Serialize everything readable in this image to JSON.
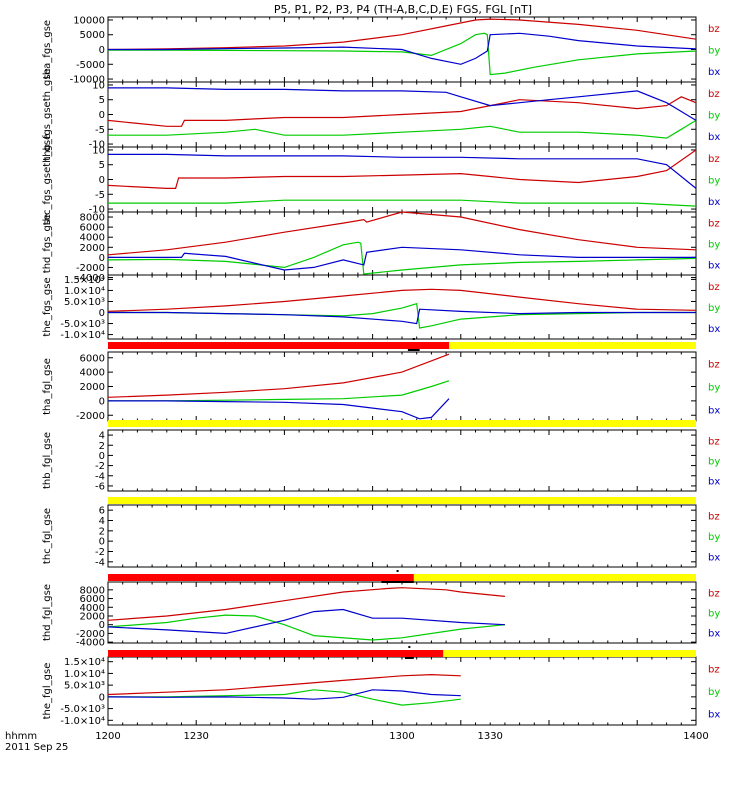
{
  "title": "P5, P1, P2, P3, P4 (TH-A,B,C,D,E) FGS, FGL [nT]",
  "time_axis": {
    "ticks": [
      "1200",
      "1230",
      "1300",
      "1330",
      "1400"
    ],
    "label_lines": [
      "hhmm",
      "2011 Sep 25"
    ]
  },
  "colors": {
    "bx": "#0000cc",
    "by": "#00cc00",
    "bz": "#cc0000",
    "bar_red": "#ff0000",
    "bar_yellow": "#ffff00",
    "bar_black": "#000000"
  },
  "legend_labels": [
    "bz",
    "by",
    "bx"
  ],
  "chart_data": [
    {
      "type": "line",
      "ylabel": "tha_fgs_gse",
      "ylim": [
        -11000,
        11000
      ],
      "yticks": [
        "10000",
        "5000",
        "0",
        "-5000",
        "-10000"
      ],
      "ytick_values": [
        10000,
        5000,
        0,
        -5000,
        -10000
      ],
      "x_end": 1400,
      "series": [
        {
          "key": "bz",
          "x": [
            1200,
            1220,
            1240,
            1260,
            1280,
            1300,
            1315,
            1325,
            1330,
            1340,
            1360,
            1380,
            1400
          ],
          "y": [
            0,
            200,
            600,
            1200,
            2500,
            5000,
            8000,
            10000,
            10300,
            10000,
            8500,
            6500,
            3500
          ]
        },
        {
          "key": "by",
          "x": [
            1200,
            1220,
            1240,
            1260,
            1280,
            1300,
            1310,
            1320,
            1325,
            1328,
            1329,
            1330,
            1335,
            1345,
            1360,
            1380,
            1400
          ],
          "y": [
            -200,
            -200,
            -300,
            -400,
            -500,
            -800,
            -2000,
            2000,
            5000,
            5500,
            5000,
            -8500,
            -8000,
            -6000,
            -3500,
            -1500,
            -500
          ]
        },
        {
          "key": "bx",
          "x": [
            1200,
            1220,
            1240,
            1260,
            1280,
            1300,
            1310,
            1320,
            1325,
            1329,
            1330,
            1340,
            1350,
            1360,
            1380,
            1400
          ],
          "y": [
            0,
            0,
            300,
            500,
            800,
            0,
            -3000,
            -5000,
            -3000,
            -500,
            5000,
            5500,
            4500,
            3000,
            1200,
            200
          ]
        }
      ]
    },
    {
      "type": "line",
      "ylabel": "thb_fgs_gseth_gse",
      "ylim": [
        -11,
        11
      ],
      "yticks": [
        "10",
        "5",
        "0",
        "-5",
        "-10"
      ],
      "ytick_values": [
        10,
        5,
        0,
        -5,
        -10
      ],
      "x_end": 1400,
      "series": [
        {
          "key": "bz",
          "x": [
            1200,
            1210,
            1220,
            1225,
            1226,
            1240,
            1250,
            1260,
            1280,
            1300,
            1320,
            1330,
            1340,
            1360,
            1380,
            1390,
            1395,
            1400
          ],
          "y": [
            -2,
            -3,
            -4,
            -4,
            -2,
            -2,
            -1.5,
            -1,
            -1,
            0,
            1,
            3,
            5,
            4,
            2,
            3,
            6,
            4
          ]
        },
        {
          "key": "by",
          "x": [
            1200,
            1220,
            1240,
            1250,
            1260,
            1280,
            1300,
            1320,
            1330,
            1340,
            1360,
            1380,
            1390,
            1395,
            1400
          ],
          "y": [
            -7,
            -7,
            -6,
            -5,
            -7,
            -7,
            -6,
            -5,
            -4,
            -6,
            -6,
            -7,
            -8,
            -5,
            -2
          ]
        },
        {
          "key": "bx",
          "x": [
            1200,
            1220,
            1240,
            1260,
            1280,
            1300,
            1315,
            1320,
            1330,
            1340,
            1350,
            1360,
            1380,
            1390,
            1395,
            1400
          ],
          "y": [
            9,
            9,
            8.5,
            8.5,
            8,
            8,
            7.5,
            6,
            3,
            4,
            5,
            6,
            8,
            4,
            1,
            -2
          ]
        }
      ]
    },
    {
      "type": "line",
      "ylabel": "thc_fgs_gseth_gse",
      "ylim": [
        -11,
        11
      ],
      "yticks": [
        "10",
        "5",
        "0",
        "-5",
        "-10"
      ],
      "ytick_values": [
        10,
        5,
        0,
        -5,
        -10
      ],
      "x_end": 1400,
      "series": [
        {
          "key": "bz",
          "x": [
            1200,
            1220,
            1223,
            1224,
            1240,
            1260,
            1280,
            1300,
            1320,
            1330,
            1340,
            1360,
            1380,
            1390,
            1400
          ],
          "y": [
            -2,
            -3,
            -3,
            0.5,
            0.5,
            1,
            1,
            1.5,
            2,
            1,
            0,
            -1,
            1,
            3,
            10
          ]
        },
        {
          "key": "by",
          "x": [
            1200,
            1220,
            1240,
            1260,
            1280,
            1300,
            1320,
            1340,
            1360,
            1380,
            1400
          ],
          "y": [
            -8,
            -8,
            -8,
            -7,
            -7,
            -7,
            -7,
            -8,
            -8,
            -8,
            -9
          ]
        },
        {
          "key": "bx",
          "x": [
            1200,
            1220,
            1240,
            1260,
            1280,
            1300,
            1320,
            1340,
            1360,
            1380,
            1390,
            1400
          ],
          "y": [
            8.5,
            8.5,
            8,
            8,
            8,
            7.5,
            7.5,
            7,
            7,
            7,
            5,
            -3
          ]
        }
      ]
    },
    {
      "type": "line",
      "ylabel": "thd_fgs_gse",
      "ylim": [
        -3500,
        9000
      ],
      "yticks": [
        "8000",
        "6000",
        "4000",
        "2000",
        "0",
        "-2000",
        "-4000"
      ],
      "ytick_values": [
        8000,
        6000,
        4000,
        2000,
        0,
        -2000,
        -4000
      ],
      "x_end": 1400,
      "series": [
        {
          "key": "bz",
          "x": [
            1200,
            1220,
            1240,
            1260,
            1280,
            1287,
            1288,
            1300,
            1320,
            1340,
            1360,
            1380,
            1400
          ],
          "y": [
            500,
            1500,
            3000,
            5000,
            6800,
            7500,
            7000,
            9000,
            8000,
            5500,
            3500,
            2000,
            1500
          ]
        },
        {
          "key": "by",
          "x": [
            1200,
            1220,
            1240,
            1260,
            1270,
            1280,
            1285,
            1286,
            1287,
            1300,
            1320,
            1340,
            1360,
            1380,
            1400
          ],
          "y": [
            -500,
            -400,
            -800,
            -2000,
            0,
            2500,
            3000,
            2800,
            -3300,
            -2500,
            -1500,
            -1000,
            -800,
            -500,
            -200
          ]
        },
        {
          "key": "bx",
          "x": [
            1200,
            1225,
            1226,
            1240,
            1260,
            1270,
            1280,
            1287,
            1288,
            1300,
            1320,
            1340,
            1360,
            1380,
            1400
          ],
          "y": [
            0,
            0,
            800,
            200,
            -2500,
            -2000,
            -500,
            -1500,
            1000,
            2000,
            1500,
            500,
            0,
            0,
            0
          ]
        }
      ]
    },
    {
      "type": "line",
      "ylabel": "the_fgs_gse",
      "ylim": [
        -12000,
        17000
      ],
      "yticks": [
        "1.5×10⁴",
        "1.0×10⁴",
        "5.0×10³",
        "0",
        "-5.0×10³",
        "-1.0×10⁴"
      ],
      "ytick_values": [
        15000,
        10000,
        5000,
        0,
        -5000,
        -10000
      ],
      "x_end": 1400,
      "series": [
        {
          "key": "bz",
          "x": [
            1200,
            1220,
            1240,
            1260,
            1280,
            1300,
            1310,
            1320,
            1340,
            1360,
            1380,
            1400
          ],
          "y": [
            500,
            1500,
            3000,
            5000,
            7500,
            10000,
            10500,
            10000,
            7000,
            4000,
            1500,
            1000
          ]
        },
        {
          "key": "by",
          "x": [
            1200,
            1220,
            1240,
            1260,
            1280,
            1290,
            1300,
            1305,
            1306,
            1310,
            1320,
            1340,
            1360,
            1380,
            1400
          ],
          "y": [
            0,
            0,
            -500,
            -1000,
            -1500,
            -500,
            2000,
            4000,
            -7000,
            -6000,
            -3000,
            -1000,
            -500,
            0,
            0
          ]
        },
        {
          "key": "bx",
          "x": [
            1200,
            1220,
            1240,
            1260,
            1280,
            1300,
            1305,
            1306,
            1320,
            1340,
            1360,
            1380,
            1400
          ],
          "y": [
            0,
            0,
            -500,
            -1000,
            -2000,
            -4000,
            -5000,
            1500,
            500,
            -500,
            0,
            0,
            0
          ]
        }
      ]
    },
    {
      "type": "line",
      "ylabel": "tha_fgl_gse",
      "ylim": [
        -2800,
        6800
      ],
      "yticks": [
        "6000",
        "4000",
        "2000",
        "0",
        "-2000"
      ],
      "ytick_values": [
        6000,
        4000,
        2000,
        0,
        -2000
      ],
      "x_end": 1316,
      "series": [
        {
          "key": "bz",
          "x": [
            1200,
            1220,
            1240,
            1260,
            1280,
            1300,
            1316
          ],
          "y": [
            500,
            800,
            1200,
            1700,
            2500,
            4000,
            6500
          ]
        },
        {
          "key": "by",
          "x": [
            1200,
            1220,
            1240,
            1260,
            1280,
            1300,
            1310,
            1316
          ],
          "y": [
            0,
            0,
            100,
            200,
            300,
            800,
            2000,
            2800
          ]
        },
        {
          "key": "bx",
          "x": [
            1200,
            1220,
            1240,
            1260,
            1280,
            1300,
            1306,
            1310,
            1316
          ],
          "y": [
            0,
            0,
            -100,
            -200,
            -500,
            -1500,
            -2500,
            -2300,
            300
          ]
        }
      ]
    },
    {
      "type": "line",
      "ylabel": "thb_fgl_gse",
      "ylim": [
        -7,
        5
      ],
      "yticks": [
        "4",
        "2",
        "0",
        "-2",
        "-4",
        "-6"
      ],
      "ytick_values": [
        4,
        2,
        0,
        -2,
        -4,
        -6
      ],
      "x_end": 1400,
      "series": [
        {
          "key": "bz",
          "x": [],
          "y": []
        },
        {
          "key": "by",
          "x": [],
          "y": []
        },
        {
          "key": "bx",
          "x": [],
          "y": []
        }
      ]
    },
    {
      "type": "line",
      "ylabel": "thc_fgl_gse",
      "ylim": [
        -5,
        7
      ],
      "yticks": [
        "6",
        "4",
        "2",
        "0",
        "-2",
        "-4"
      ],
      "ytick_values": [
        6,
        4,
        2,
        0,
        -2,
        -4
      ],
      "x_end": 1400,
      "series": [
        {
          "key": "bz",
          "x": [],
          "y": []
        },
        {
          "key": "by",
          "x": [],
          "y": []
        },
        {
          "key": "bx",
          "x": [],
          "y": []
        }
      ]
    },
    {
      "type": "line",
      "ylabel": "thd_fgl_gse",
      "ylim": [
        -4200,
        9800
      ],
      "yticks": [
        "8000",
        "6000",
        "4000",
        "2000",
        "0",
        "-2000",
        "-4000"
      ],
      "ytick_values": [
        8000,
        6000,
        4000,
        2000,
        0,
        -2000,
        -4000
      ],
      "x_end": 1335,
      "series": [
        {
          "key": "bz",
          "x": [
            1200,
            1220,
            1240,
            1260,
            1280,
            1295,
            1300,
            1315,
            1320,
            1335
          ],
          "y": [
            1000,
            2000,
            3500,
            5500,
            7500,
            8300,
            8500,
            8000,
            7500,
            6500
          ]
        },
        {
          "key": "by",
          "x": [
            1200,
            1220,
            1230,
            1240,
            1250,
            1260,
            1270,
            1290,
            1300,
            1320,
            1335
          ],
          "y": [
            -500,
            500,
            1500,
            2200,
            2000,
            0,
            -2500,
            -3500,
            -3000,
            -1000,
            0
          ]
        },
        {
          "key": "bx",
          "x": [
            1200,
            1220,
            1240,
            1260,
            1270,
            1280,
            1290,
            1300,
            1320,
            1335
          ],
          "y": [
            -500,
            -1200,
            -2000,
            1000,
            3000,
            3500,
            1500,
            1500,
            500,
            0
          ]
        }
      ]
    },
    {
      "type": "line",
      "ylabel": "the_fgl_gse",
      "ylim": [
        -12000,
        17000
      ],
      "yticks": [
        "1.5×10⁴",
        "1.0×10⁴",
        "5.0×10³",
        "0",
        "-5.0×10³",
        "-1.0×10⁴"
      ],
      "ytick_values": [
        15000,
        10000,
        5000,
        0,
        -5000,
        -10000
      ],
      "x_end": 1320,
      "series": [
        {
          "key": "bz",
          "x": [
            1200,
            1220,
            1240,
            1260,
            1280,
            1300,
            1310,
            1320
          ],
          "y": [
            1000,
            2000,
            3000,
            5000,
            7000,
            9000,
            9500,
            9000
          ]
        },
        {
          "key": "by",
          "x": [
            1200,
            1220,
            1240,
            1260,
            1270,
            1280,
            1290,
            1300,
            1310,
            1320
          ],
          "y": [
            0,
            0,
            500,
            1000,
            3000,
            2000,
            -1000,
            -3500,
            -2500,
            -1000
          ]
        },
        {
          "key": "bx",
          "x": [
            1200,
            1220,
            1240,
            1260,
            1270,
            1280,
            1290,
            1300,
            1310,
            1320
          ],
          "y": [
            0,
            -200,
            0,
            -500,
            -1000,
            -200,
            3000,
            2500,
            1000,
            500
          ]
        }
      ]
    }
  ],
  "state_bars": [
    {
      "after_panel": 4,
      "red_end": 1316,
      "black_start": 1302,
      "black_end": 1306
    },
    {
      "after_panel": 5,
      "red_end": 1200,
      "black_start": null,
      "black_end": null
    },
    {
      "after_panel": 6,
      "red_end": 1200,
      "black_start": null,
      "black_end": null
    },
    {
      "after_panel": 7,
      "red_end": 1304,
      "black_start": 1293,
      "black_end": 1304
    },
    {
      "after_panel": 8,
      "red_end": 1314,
      "black_start": 1301,
      "black_end": 1304
    }
  ]
}
